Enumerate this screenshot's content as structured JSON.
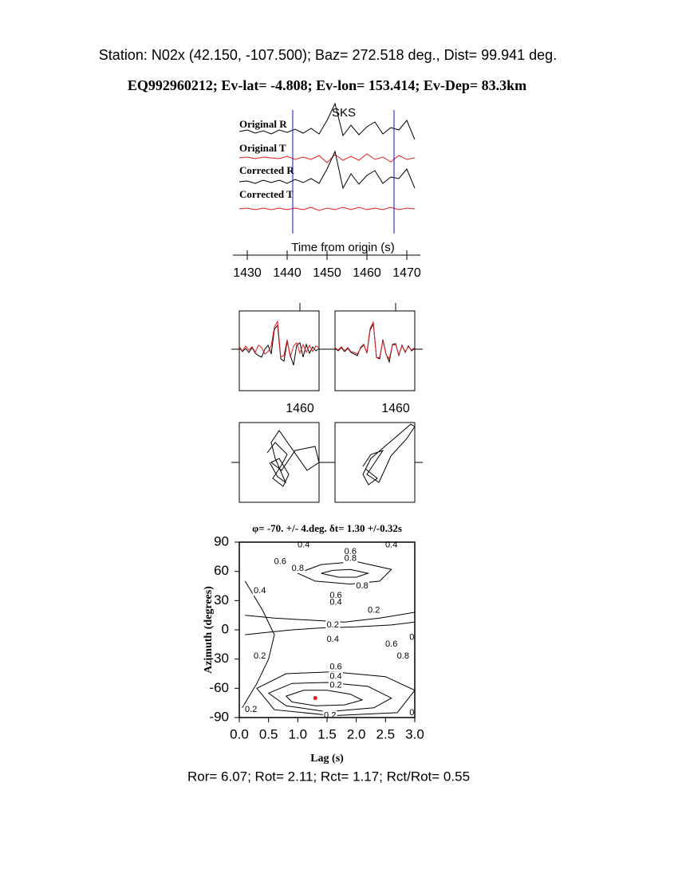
{
  "header": {
    "station": "Station: N02x (42.150, -107.500); Baz=  272.518 deg., Dist=   99.941 deg.",
    "event": "EQ992960212; Ev-lat=  -4.808; Ev-lon= 153.414; Ev-Dep= 83.3km"
  },
  "chart_data": [
    {
      "type": "line",
      "annotation": "SKS",
      "annotation_color": "#e02020",
      "xlabel": "Time from origin (s)",
      "xlim": [
        1427,
        1473
      ],
      "xticks": [
        1430,
        1440,
        1450,
        1460,
        1470
      ],
      "window": [
        1441.4,
        1466.8
      ],
      "window_color": "#1010c0",
      "x": [
        1428,
        1430,
        1432,
        1434,
        1436,
        1438,
        1440,
        1442,
        1444,
        1446,
        1448,
        1450,
        1452,
        1454,
        1456,
        1458,
        1460,
        1462,
        1464,
        1466,
        1468,
        1470,
        1472
      ],
      "series": [
        {
          "name": "Original R",
          "color": "#000000",
          "values": [
            0,
            2,
            -2,
            1,
            -3,
            2,
            -1,
            3,
            -2,
            4,
            -3,
            14,
            35,
            -5,
            8,
            -4,
            6,
            12,
            -3,
            5,
            2,
            14,
            -10
          ]
        },
        {
          "name": "Original T",
          "color": "#e02020",
          "values": [
            0,
            1,
            -1,
            1,
            0,
            -1,
            2,
            -2,
            1,
            -2,
            3,
            -6,
            4,
            -3,
            2,
            -3,
            5,
            -2,
            1,
            -5,
            3,
            -2,
            0
          ]
        },
        {
          "name": "Corrected R",
          "color": "#000000",
          "values": [
            0,
            1,
            -2,
            2,
            -1,
            2,
            -2,
            3,
            -1,
            4,
            -2,
            16,
            38,
            -8,
            10,
            -3,
            8,
            14,
            -2,
            6,
            4,
            16,
            -8
          ]
        },
        {
          "name": "Corrected T",
          "color": "#e02020",
          "values": [
            0,
            1,
            -1,
            1,
            -1,
            1,
            -1,
            1,
            -1,
            2,
            -2,
            1,
            -1,
            2,
            -1,
            2,
            -1,
            1,
            -1,
            2,
            -1,
            1,
            0
          ]
        }
      ]
    },
    {
      "type": "overlay",
      "xlim": [
        1441,
        1466
      ],
      "xticks": [
        1460
      ],
      "x": [
        1441,
        1442,
        1443,
        1444,
        1445,
        1446,
        1447,
        1448,
        1449,
        1450,
        1451,
        1452,
        1453,
        1454,
        1455,
        1456,
        1457,
        1458,
        1459,
        1460,
        1461,
        1462,
        1463,
        1464,
        1465,
        1466
      ],
      "panels": [
        {
          "series": [
            {
              "color": "#000000",
              "values": [
                2,
                -3,
                1,
                -4,
                2,
                -5,
                -8,
                -10,
                0,
                5,
                -6,
                25,
                30,
                -12,
                -15,
                10,
                -8,
                -20,
                5,
                8,
                -10,
                6,
                -5,
                3,
                -2,
                1
              ]
            },
            {
              "color": "#e02020",
              "values": [
                3,
                -2,
                4,
                -1,
                3,
                -4,
                5,
                2,
                -6,
                -3,
                4,
                28,
                35,
                -10,
                -8,
                12,
                -10,
                4,
                8,
                -5,
                6,
                -4,
                5,
                -3,
                4,
                2
              ]
            }
          ]
        },
        {
          "series": [
            {
              "color": "#000000",
              "values": [
                1,
                -2,
                2,
                -3,
                1,
                -4,
                -6,
                -8,
                2,
                6,
                -5,
                24,
                32,
                -10,
                -12,
                12,
                -6,
                -16,
                6,
                7,
                -8,
                5,
                -4,
                4,
                -2,
                1
              ]
            },
            {
              "color": "#e02020",
              "values": [
                2,
                -1,
                3,
                -2,
                2,
                -3,
                -4,
                -6,
                1,
                5,
                -4,
                26,
                34,
                -11,
                -10,
                11,
                -7,
                -12,
                5,
                6,
                -7,
                4,
                -3,
                3,
                -1,
                2
              ]
            }
          ]
        }
      ]
    },
    {
      "type": "hodogram",
      "panels": [
        {
          "color": "#000000",
          "x": [
            -15,
            -5,
            10,
            2,
            -8,
            5,
            12,
            0,
            -10,
            3,
            20,
            45,
            50,
            35,
            0,
            -10,
            -5,
            8,
            -2,
            -12
          ],
          "y": [
            12,
            25,
            10,
            -5,
            -20,
            -30,
            -15,
            5,
            0,
            -10,
            15,
            20,
            0,
            -10,
            40,
            25,
            5,
            -25,
            -18,
            0
          ]
        },
        {
          "color": "#000000",
          "x": [
            -15,
            -5,
            10,
            0,
            -10,
            5,
            12,
            20,
            40,
            50,
            45,
            30,
            10,
            -5,
            -15,
            -8,
            3,
            -12
          ],
          "y": [
            -5,
            10,
            15,
            0,
            -15,
            -25,
            -10,
            8,
            30,
            45,
            48,
            35,
            18,
            5,
            -15,
            -28,
            -20,
            -8
          ]
        }
      ]
    },
    {
      "type": "contour",
      "title": "φ= -70. +/- 4.deg. δt= 1.30 +/-0.32s",
      "xlabel": "Lag (s)",
      "ylabel": "Azimuth (degrees)",
      "xlim": [
        0,
        3
      ],
      "ylim": [
        -90,
        90
      ],
      "xticks": [
        {
          "value": 0,
          "label": "0.0"
        },
        0.5,
        {
          "value": 1,
          "label": "1.0"
        },
        1.5,
        {
          "value": 2,
          "label": "2.0"
        },
        2.5,
        {
          "value": 3,
          "label": "3.0"
        }
      ],
      "yticks": [
        -90,
        -60,
        -30,
        0,
        30,
        60,
        90
      ],
      "contours": [
        {
          "level": 0.2,
          "closed": true,
          "x": [
            0.8,
            1.1,
            1.5,
            1.9,
            2.1,
            1.8,
            1.3,
            0.9
          ],
          "y": [
            -68,
            -62,
            -62,
            -66,
            -72,
            -77,
            -78,
            -74
          ]
        },
        {
          "level": 0.4,
          "closed": true,
          "x": [
            0.5,
            0.9,
            1.5,
            2.2,
            2.6,
            2.3,
            1.5,
            0.8
          ],
          "y": [
            -65,
            -55,
            -54,
            -58,
            -70,
            -80,
            -84,
            -78
          ]
        },
        {
          "level": 0.6,
          "closed": true,
          "x": [
            0.3,
            0.8,
            1.6,
            2.5,
            3.0,
            2.7,
            1.6,
            0.6
          ],
          "y": [
            -60,
            -45,
            -43,
            -48,
            -62,
            -85,
            -88,
            -82
          ]
        },
        {
          "level": 0.8,
          "closed": true,
          "x": [
            1.4,
            1.6,
            1.9,
            2.2,
            2.0,
            1.7
          ],
          "y": [
            58,
            61,
            62,
            58,
            54,
            54
          ]
        },
        {
          "level": 0.6,
          "closed": true,
          "x": [
            1.0,
            1.4,
            2.0,
            2.6,
            2.4,
            1.9,
            1.3
          ],
          "y": [
            58,
            67,
            70,
            62,
            50,
            47,
            50
          ]
        },
        {
          "level": 0.2,
          "closed": false,
          "x": [
            0.1,
            0.6,
            1.2,
            1.8,
            2.4,
            3.0
          ],
          "y": [
            15,
            12,
            10,
            8,
            12,
            18
          ]
        },
        {
          "level": 0.2,
          "closed": false,
          "x": [
            0.1,
            0.4,
            0.9,
            1.4,
            2.0,
            2.6,
            3.0
          ],
          "y": [
            -5,
            -3,
            0,
            2,
            3,
            5,
            8
          ]
        },
        {
          "level": 0.4,
          "closed": false,
          "x": [
            0.05,
            0.3,
            0.5,
            0.6,
            0.4,
            0.1
          ],
          "y": [
            -80,
            -55,
            -30,
            -5,
            20,
            50
          ]
        }
      ],
      "contour_labels": [
        {
          "x": 1.1,
          "y": 87,
          "level": 0.4
        },
        {
          "x": 1.9,
          "y": 80,
          "level": 0.6
        },
        {
          "x": 2.6,
          "y": 87,
          "level": 0.4
        },
        {
          "x": 0.7,
          "y": 70,
          "level": 0.6
        },
        {
          "x": 1.0,
          "y": 63,
          "level": 0.8
        },
        {
          "x": 1.9,
          "y": 73,
          "level": 0.8
        },
        {
          "x": 2.1,
          "y": 45,
          "level": 0.8
        },
        {
          "x": 0.35,
          "y": 40,
          "level": 0.4
        },
        {
          "x": 1.65,
          "y": 35,
          "level": 0.6
        },
        {
          "x": 1.65,
          "y": 28,
          "level": 0.4
        },
        {
          "x": 2.3,
          "y": 20,
          "level": 0.2
        },
        {
          "x": 1.6,
          "y": 5,
          "level": 0.2
        },
        {
          "x": 1.6,
          "y": -10,
          "level": 0.4
        },
        {
          "x": 2.6,
          "y": -15,
          "level": 0.6
        },
        {
          "x": 2.95,
          "y": -8,
          "level": 0
        },
        {
          "x": 2.8,
          "y": -27,
          "level": 0.8
        },
        {
          "x": 0.35,
          "y": -27,
          "level": 0.2
        },
        {
          "x": 1.65,
          "y": -38,
          "level": 0.6
        },
        {
          "x": 1.65,
          "y": -48,
          "level": 0.4
        },
        {
          "x": 1.65,
          "y": -57,
          "level": 0.2
        },
        {
          "x": 0.2,
          "y": -82,
          "level": 0.2
        },
        {
          "x": 1.55,
          "y": -88,
          "level": 0.2
        },
        {
          "x": 2.95,
          "y": -85,
          "level": 0
        }
      ],
      "marker": {
        "x": 1.3,
        "y": -70,
        "color": "#e02020"
      }
    }
  ],
  "footer": "Ror= 6.07; Rot= 2.11; Rct= 1.17; Rct/Rot= 0.55"
}
